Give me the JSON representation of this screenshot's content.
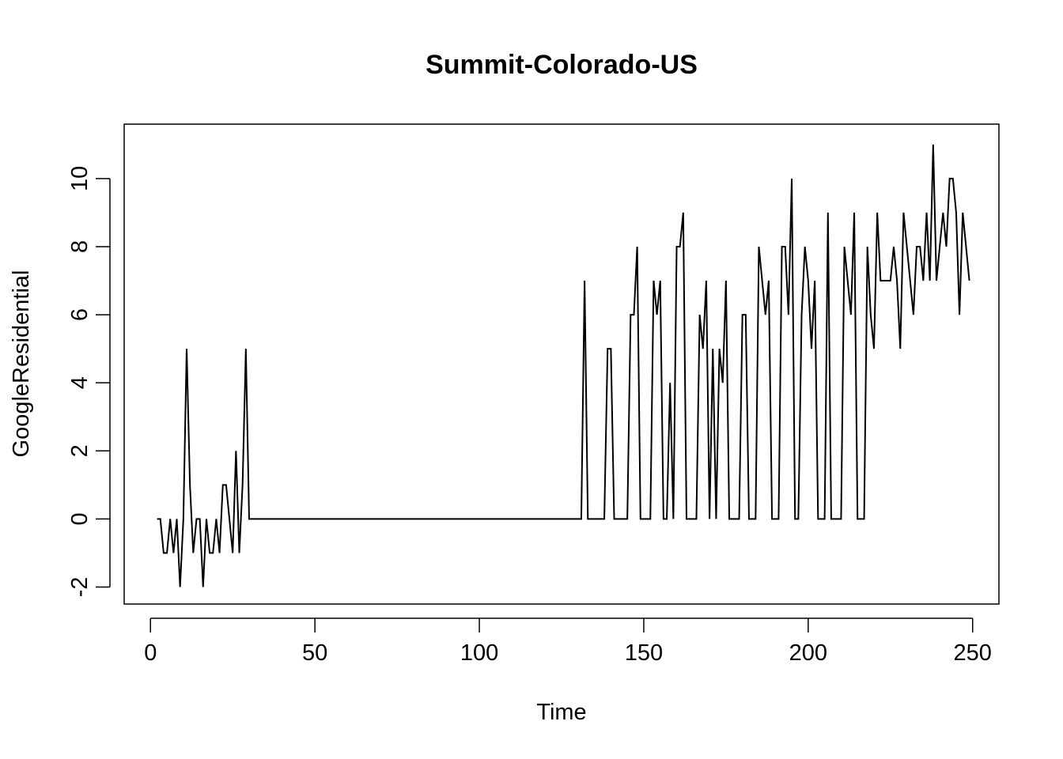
{
  "chart_data": {
    "type": "line",
    "title": "Summit-Colorado-US",
    "xlabel": "Time",
    "ylabel": "GoogleResidential",
    "xlim": [
      -8,
      258
    ],
    "ylim": [
      -2.5,
      11.6
    ],
    "x_ticks": [
      0,
      50,
      100,
      150,
      200,
      250
    ],
    "x_tick_labels": [
      "0",
      "50",
      "100",
      "150",
      "200",
      "250"
    ],
    "y_ticks": [
      -2,
      0,
      2,
      4,
      6,
      8,
      10
    ],
    "y_tick_labels": [
      "-2",
      "0",
      "2",
      "4",
      "6",
      "8",
      "10"
    ],
    "grid": false,
    "legend": "none",
    "line_color": "#000000",
    "series": [
      {
        "x_start": 2,
        "values": [
          0,
          0,
          -1,
          -1,
          0,
          -1,
          0,
          -2,
          0,
          5,
          1,
          -1,
          0,
          0,
          -2,
          0,
          -1,
          -1,
          0,
          -1,
          1,
          1,
          0,
          -1,
          2,
          -1,
          1,
          5,
          0,
          0,
          0,
          0,
          0,
          0,
          0,
          0,
          0,
          0,
          0,
          0,
          0,
          0,
          0,
          0,
          0,
          0,
          0,
          0,
          0,
          0,
          0,
          0,
          0,
          0,
          0,
          0,
          0,
          0,
          0,
          0,
          0,
          0,
          0,
          0,
          0,
          0,
          0,
          0,
          0,
          0,
          0,
          0,
          0,
          0,
          0,
          0,
          0,
          0,
          0,
          0,
          0,
          0,
          0,
          0,
          0,
          0,
          0,
          0,
          0,
          0,
          0,
          0,
          0,
          0,
          0,
          0,
          0,
          0,
          0,
          0,
          0,
          0,
          0,
          0,
          0,
          0,
          0,
          0,
          0,
          0,
          0,
          0,
          0,
          0,
          0,
          0,
          0,
          0,
          0,
          0,
          0,
          0,
          0,
          0,
          0,
          0,
          0,
          0,
          0,
          0,
          7,
          0,
          0,
          0,
          0,
          0,
          0,
          5,
          5,
          0,
          0,
          0,
          0,
          0,
          6,
          6,
          8,
          0,
          0,
          0,
          0,
          7,
          6,
          7,
          0,
          0,
          4,
          0,
          8,
          8,
          9,
          0,
          0,
          0,
          0,
          6,
          5,
          7,
          0,
          5,
          0,
          5,
          4,
          7,
          0,
          0,
          0,
          0,
          6,
          6,
          0,
          0,
          0,
          8,
          7,
          6,
          7,
          0,
          0,
          0,
          8,
          8,
          6,
          10,
          0,
          0,
          6,
          8,
          7,
          5,
          7,
          0,
          0,
          0,
          9,
          0,
          0,
          0,
          0,
          8,
          7,
          6,
          9,
          0,
          0,
          0,
          8,
          6,
          5,
          9,
          7,
          7,
          7,
          7,
          8,
          7,
          5,
          9,
          8,
          7,
          6,
          8,
          8,
          7,
          9,
          7,
          11,
          7,
          8,
          9,
          8,
          10,
          10,
          9,
          6,
          9,
          8,
          7
        ]
      }
    ]
  }
}
